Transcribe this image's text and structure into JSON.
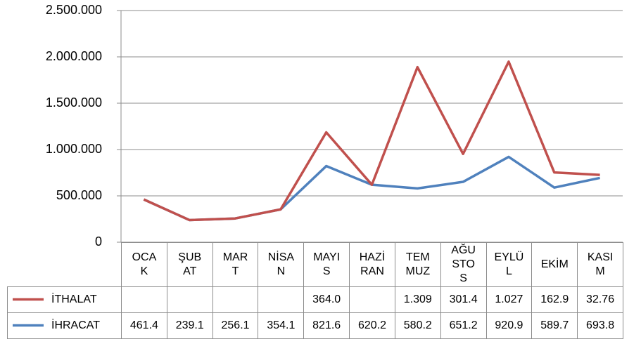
{
  "chart_data": {
    "type": "line",
    "stacked": true,
    "categories": [
      "OCAK",
      "ŞUBAT",
      "MART",
      "NİSAN",
      "MAYIS",
      "HAZİRAN",
      "TEMMUZ",
      "AĞUSTOS",
      "EYLÜL",
      "EKİM",
      "KASIM"
    ],
    "series": [
      {
        "name": "İTHALAT",
        "color": "#c0504d",
        "values": [
          0,
          0,
          0,
          0,
          364000,
          0,
          1309000,
          301400,
          1027000,
          162900,
          32760
        ],
        "value_labels": [
          null,
          null,
          null,
          null,
          "364.0",
          null,
          "1.309",
          "301.4",
          "1.027",
          "162.9",
          "32.76"
        ]
      },
      {
        "name": "İHRACAT",
        "color": "#4f81bd",
        "values": [
          461400,
          239100,
          256100,
          354100,
          821600,
          620200,
          580200,
          651200,
          920900,
          589700,
          693800
        ],
        "value_labels": [
          "461.4",
          "239.1",
          "256.1",
          "354.1",
          "821.6",
          "620.2",
          "580.2",
          "651.2",
          "920.9",
          "589.7",
          "693.8"
        ]
      }
    ],
    "ylim": [
      0,
      2500000
    ],
    "yticks": [
      0,
      {
        "value": 500000,
        "label": "500.000"
      },
      {
        "value": 1000000,
        "label": "1.000.000"
      },
      {
        "value": 1500000,
        "label": "1.500.000"
      },
      {
        "value": 2000000,
        "label": "2.000.000"
      },
      {
        "value": 2500000,
        "label": "2.500.000"
      }
    ],
    "grid": true
  }
}
